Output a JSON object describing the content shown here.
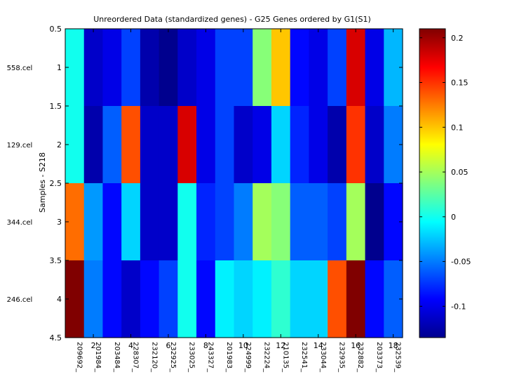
{
  "chart_data": {
    "type": "heatmap",
    "title": "Unreordered Data (standardized genes) - G25 Genes ordered by G1(S1)",
    "ylabel": "Samples - S218",
    "xlabel": "",
    "rows": [
      "558.cel",
      "129.cel",
      "344.cel",
      "246.cel"
    ],
    "columns": [
      "209692_",
      "201984_",
      "203484_",
      "228307_",
      "232120_",
      "232925_",
      "233025_",
      "243327_",
      "201983_",
      "224999_",
      "232224_",
      "210135_",
      "232541_",
      "233044_",
      "232935_",
      "232882_",
      "203373_",
      "232539_"
    ],
    "y_ticks": [
      "0.5",
      "1",
      "1.5",
      "2",
      "2.5",
      "3",
      "3.5",
      "4",
      "4.5"
    ],
    "y_tick_values": [
      0.5,
      1,
      1.5,
      2,
      2.5,
      3,
      3.5,
      4,
      4.5
    ],
    "x_ticks": [
      "2",
      "4",
      "6",
      "8",
      "10",
      "12",
      "14",
      "16",
      "18"
    ],
    "x_tick_values": [
      2,
      4,
      6,
      8,
      10,
      12,
      14,
      16,
      18
    ],
    "values": [
      [
        0.0,
        -0.11,
        -0.1,
        -0.07,
        -0.12,
        -0.13,
        -0.11,
        -0.1,
        -0.07,
        -0.07,
        0.04,
        0.1,
        -0.09,
        -0.1,
        -0.07,
        0.18,
        -0.1,
        -0.03
      ],
      [
        0.0,
        -0.12,
        -0.06,
        0.14,
        -0.11,
        -0.11,
        0.18,
        -0.1,
        -0.07,
        -0.11,
        -0.1,
        -0.02,
        -0.08,
        -0.1,
        -0.12,
        0.15,
        -0.11,
        -0.05
      ],
      [
        0.13,
        -0.04,
        -0.09,
        -0.02,
        -0.11,
        -0.11,
        0.0,
        -0.08,
        -0.07,
        -0.05,
        0.05,
        0.04,
        -0.06,
        -0.06,
        -0.07,
        0.05,
        -0.13,
        -0.09
      ],
      [
        0.21,
        -0.05,
        -0.09,
        -0.11,
        -0.09,
        -0.07,
        0.0,
        -0.09,
        -0.01,
        -0.02,
        -0.01,
        0.01,
        -0.02,
        -0.02,
        0.14,
        0.21,
        -0.09,
        -0.06
      ]
    ],
    "colorbar_range": [
      -0.135,
      0.21
    ],
    "colorbar_ticks": [
      "-0.1",
      "-0.05",
      "0",
      "0.05",
      "0.1",
      "0.15",
      "0.2"
    ],
    "colorbar_tick_values": [
      -0.1,
      -0.05,
      0,
      0.05,
      0.1,
      0.15,
      0.2
    ],
    "colormap": "jet"
  }
}
